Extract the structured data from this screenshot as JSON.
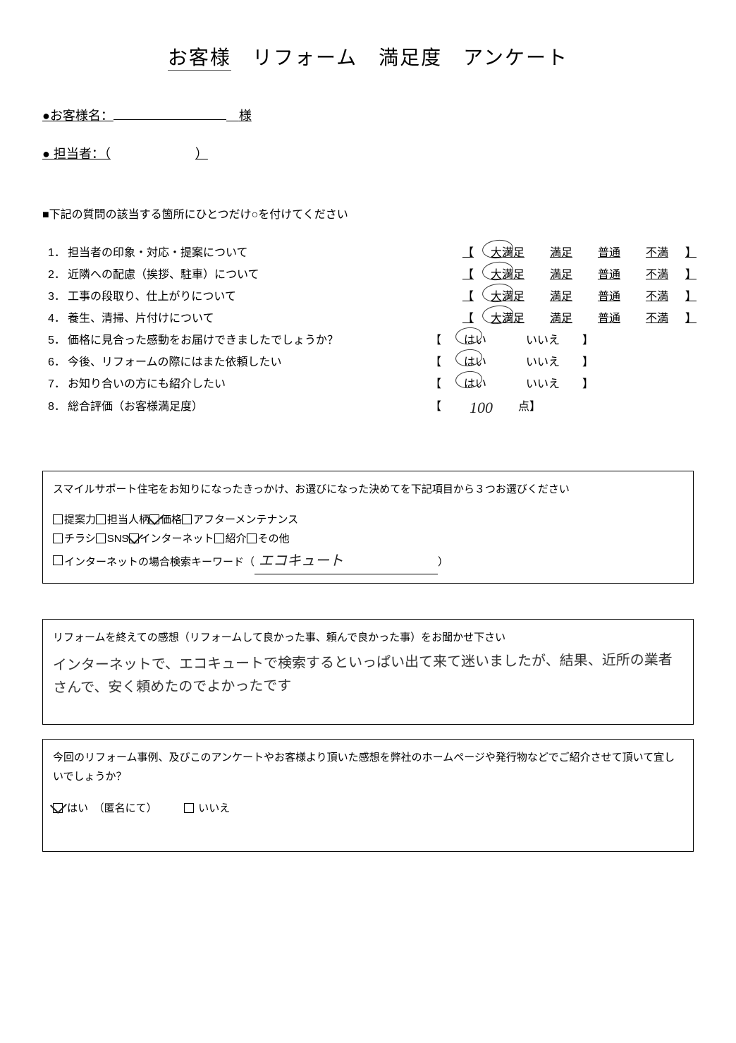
{
  "title": {
    "full": "お客様　リフォーム　満足度　アンケート",
    "p1": "お客様",
    "p2": "リフォーム",
    "p3": "満足度",
    "p4": "アンケート"
  },
  "meta": {
    "customer_label": "●お客様名：",
    "customer_suffix": "様",
    "staff_label": "● 担当者：（",
    "staff_close": "）"
  },
  "instruction": "■下記の質問の該当する箇所にひとつだけ○を付けてください",
  "scale4": [
    "大満足",
    "満足",
    "普通",
    "不満"
  ],
  "scale2": [
    "はい",
    "いいえ"
  ],
  "questions": [
    {
      "n": "1．",
      "t": "担当者の印象・対応・提案について",
      "type": "4",
      "selected": 0
    },
    {
      "n": "2．",
      "t": "近隣への配慮（挨拶、駐車）について",
      "type": "4",
      "selected": 0
    },
    {
      "n": "3．",
      "t": "工事の段取り、仕上がりについて",
      "type": "4",
      "selected": 0
    },
    {
      "n": "4．",
      "t": "養生、清掃、片付けについて",
      "type": "4",
      "selected": 0
    },
    {
      "n": "5．",
      "t": "価格に見合った感動をお届けできましたでしょうか？",
      "type": "2",
      "selected": 0
    },
    {
      "n": "6．",
      "t": "今後、リフォームの際にはまた依頼したい",
      "type": "2",
      "selected": 0
    },
    {
      "n": "7．",
      "t": "お知り合いの方にも紹介したい",
      "type": "2",
      "selected": 0
    },
    {
      "n": "8．",
      "t": "総合評価（お客様満足度）",
      "type": "score"
    }
  ],
  "score": {
    "label_suffix": "点】",
    "value": "100"
  },
  "reasons_box": {
    "heading": "スマイルサポート住宅をお知りになったきっかけ、お選びになった決めてを下記項目から３つお選びください",
    "row1_items": [
      {
        "label": "提案力",
        "checked": false
      },
      {
        "label": "担当人柄",
        "checked": false
      },
      {
        "label": "価格",
        "checked": true
      },
      {
        "label": "アフターメンテナンス",
        "checked": false
      }
    ],
    "row2_items": [
      {
        "label": "チラシ",
        "checked": false
      },
      {
        "label": "SNS",
        "checked": false
      },
      {
        "label": "インターネット",
        "checked": true
      },
      {
        "label": "紹介",
        "checked": false
      },
      {
        "label": "その他",
        "checked": false
      }
    ],
    "keyword_label": "インターネットの場合検索キーワード（",
    "keyword_close": "）",
    "keyword_value": "エコキュート"
  },
  "feedback_box": {
    "heading": "リフォームを終えての感想（リフォームして良かった事、頼んで良かった事）をお聞かせ下さい",
    "handwritten": "インターネットで、エコキュートで検索するといっぱい出て来て迷いましたが、結果、近所の業者さんで、安く頼めたのでよかったです"
  },
  "permission_box": {
    "heading": "今回のリフォーム事例、及びこのアンケートやお客様より頂いた感想を弊社のホームページや発行物などでご紹介させて頂いて宜しいでしょうか？",
    "yes_label": "はい　（匿名にて）",
    "no_label": "いいえ",
    "yes_checked": true,
    "no_checked": false
  },
  "brackets": {
    "open": "【",
    "close": "】"
  }
}
